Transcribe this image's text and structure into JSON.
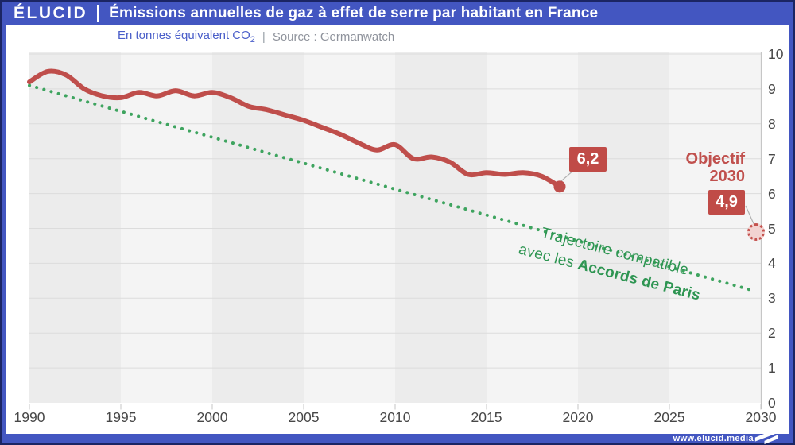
{
  "header": {
    "logo": "ÉLUCID",
    "title": "Émissions annuelles de gaz à effet de serre par habitant en France"
  },
  "subheader": {
    "unit_prefix": "En tonnes équivalent CO",
    "unit_subscript": "2",
    "divider": "|",
    "source": "Source : Germanwatch"
  },
  "footer": {
    "url": "www.elucid.media"
  },
  "colors": {
    "brand_blue": "#4356c1",
    "frame_navy": "#1b2564",
    "emissions_red": "#bf4e4b",
    "badge_red": "#c04b47",
    "trajectory_green": "#3ea45f",
    "annotation_green": "#2e9552",
    "band_dark": "#ececec",
    "band_light": "#f4f4f4",
    "grid_line": "#dcdcdc",
    "axis_line": "#c6c6c6",
    "leader_line": "#b0b0b0",
    "tick_label": "#474747"
  },
  "chart_data": {
    "type": "line",
    "title": "Émissions annuelles de gaz à effet de serre par habitant en France",
    "unit": "tonnes équivalent CO2 par habitant",
    "source": "Germanwatch",
    "xlim": [
      1990,
      2030
    ],
    "ylim": [
      0,
      10
    ],
    "x_ticks": [
      1990,
      1995,
      2000,
      2005,
      2010,
      2015,
      2020,
      2025,
      2030
    ],
    "y_ticks": [
      0,
      1,
      2,
      3,
      4,
      5,
      6,
      7,
      8,
      9,
      10
    ],
    "grid": "horizontal",
    "legend_position": "none",
    "series": [
      {
        "name": "Émissions annuelles par habitant (France)",
        "style": "solid",
        "color": "#bf4e4b",
        "x": [
          1990,
          1991,
          1992,
          1993,
          1994,
          1995,
          1996,
          1997,
          1998,
          1999,
          2000,
          2001,
          2002,
          2003,
          2004,
          2005,
          2006,
          2007,
          2008,
          2009,
          2010,
          2011,
          2012,
          2013,
          2014,
          2015,
          2016,
          2017,
          2018,
          2019
        ],
        "values": [
          9.2,
          9.5,
          9.4,
          9.0,
          8.8,
          8.75,
          8.9,
          8.8,
          8.95,
          8.8,
          8.9,
          8.75,
          8.5,
          8.4,
          8.25,
          8.1,
          7.9,
          7.7,
          7.45,
          7.25,
          7.4,
          7.0,
          7.05,
          6.9,
          6.55,
          6.6,
          6.55,
          6.6,
          6.5,
          6.2
        ],
        "end_point_label": "6,2"
      },
      {
        "name": "Trajectoire compatible avec les Accords de Paris",
        "style": "dotted",
        "color": "#3ea45f",
        "x": [
          1990,
          2030
        ],
        "values": [
          9.1,
          3.2
        ]
      }
    ],
    "target_marker": {
      "label_top": "Objectif",
      "label_bottom": "2030",
      "value": 4.9,
      "value_label": "4,9",
      "year": 2030
    },
    "annotation": {
      "line1": "Trajectoire compatible",
      "line2_normal": "avec les ",
      "line2_bold": "Accords de Paris"
    }
  }
}
